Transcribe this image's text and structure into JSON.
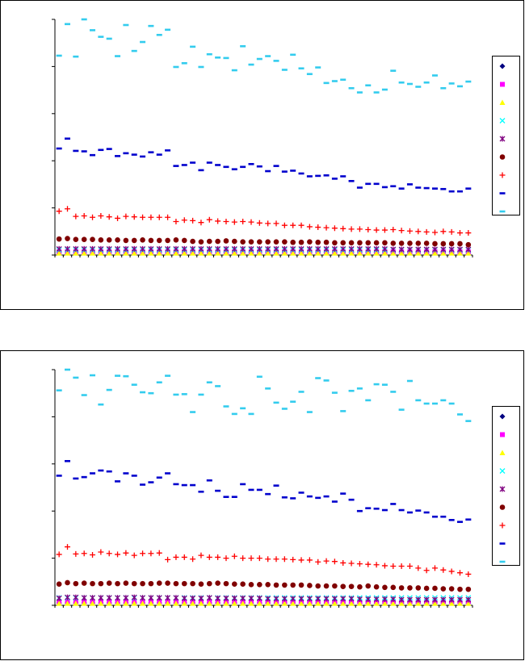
{
  "chart_data": [
    {
      "type": "scatter",
      "title": "",
      "xlabel": "",
      "ylabel": "",
      "n_points": 50,
      "ylim": [
        0,
        5
      ],
      "legend_position": "right",
      "series": [
        {
          "name": "",
          "marker": "diamond",
          "color": "#000080",
          "values": [
            0.05,
            0.05,
            0.05,
            0.05,
            0.05,
            0.05,
            0.05,
            0.05,
            0.05,
            0.05,
            0.05,
            0.05,
            0.05,
            0.05,
            0.05,
            0.05,
            0.05,
            0.05,
            0.05,
            0.05,
            0.05,
            0.05,
            0.05,
            0.05,
            0.05,
            0.05,
            0.05,
            0.05,
            0.05,
            0.05,
            0.05,
            0.05,
            0.05,
            0.05,
            0.05,
            0.05,
            0.05,
            0.05,
            0.05,
            0.05,
            0.05,
            0.05,
            0.05,
            0.05,
            0.05,
            0.05,
            0.05,
            0.05,
            0.05,
            0.05
          ]
        },
        {
          "name": "",
          "marker": "square",
          "color": "#ff00ff",
          "values": [
            0.07,
            0.07,
            0.07,
            0.07,
            0.07,
            0.07,
            0.07,
            0.07,
            0.07,
            0.07,
            0.07,
            0.07,
            0.07,
            0.07,
            0.07,
            0.07,
            0.07,
            0.07,
            0.07,
            0.07,
            0.07,
            0.07,
            0.07,
            0.07,
            0.07,
            0.07,
            0.07,
            0.07,
            0.07,
            0.07,
            0.07,
            0.07,
            0.07,
            0.07,
            0.07,
            0.07,
            0.07,
            0.07,
            0.07,
            0.07,
            0.07,
            0.07,
            0.07,
            0.07,
            0.07,
            0.07,
            0.07,
            0.07,
            0.07,
            0.07
          ]
        },
        {
          "name": "",
          "marker": "triangle",
          "color": "#ffff00",
          "values": [
            0.04,
            0.04,
            0.04,
            0.04,
            0.04,
            0.04,
            0.04,
            0.04,
            0.04,
            0.04,
            0.04,
            0.04,
            0.04,
            0.04,
            0.04,
            0.04,
            0.04,
            0.04,
            0.04,
            0.04,
            0.04,
            0.04,
            0.04,
            0.04,
            0.04,
            0.04,
            0.04,
            0.04,
            0.04,
            0.04,
            0.04,
            0.04,
            0.04,
            0.04,
            0.04,
            0.04,
            0.04,
            0.04,
            0.04,
            0.04,
            0.04,
            0.04,
            0.04,
            0.04,
            0.04,
            0.04,
            0.04,
            0.04,
            0.04,
            0.04
          ]
        },
        {
          "name": "",
          "marker": "x",
          "color": "#00ffff",
          "values": [
            0.11,
            0.11,
            0.11,
            0.11,
            0.11,
            0.11,
            0.11,
            0.11,
            0.11,
            0.11,
            0.11,
            0.11,
            0.11,
            0.11,
            0.11,
            0.11,
            0.11,
            0.11,
            0.11,
            0.11,
            0.11,
            0.11,
            0.11,
            0.11,
            0.11,
            0.11,
            0.11,
            0.11,
            0.11,
            0.11,
            0.11,
            0.11,
            0.11,
            0.11,
            0.11,
            0.11,
            0.11,
            0.11,
            0.11,
            0.11,
            0.11,
            0.11,
            0.11,
            0.11,
            0.11,
            0.11,
            0.11,
            0.11,
            0.11,
            0.11
          ]
        },
        {
          "name": "",
          "marker": "star",
          "color": "#800080",
          "values": [
            0.13,
            0.13,
            0.13,
            0.13,
            0.13,
            0.13,
            0.13,
            0.13,
            0.13,
            0.13,
            0.13,
            0.13,
            0.13,
            0.13,
            0.13,
            0.13,
            0.13,
            0.13,
            0.13,
            0.13,
            0.13,
            0.13,
            0.13,
            0.13,
            0.13,
            0.13,
            0.13,
            0.13,
            0.13,
            0.13,
            0.13,
            0.13,
            0.13,
            0.13,
            0.13,
            0.13,
            0.13,
            0.13,
            0.13,
            0.13,
            0.12,
            0.12,
            0.12,
            0.12,
            0.12,
            0.12,
            0.12,
            0.12,
            0.12,
            0.12
          ]
        },
        {
          "name": "",
          "marker": "circle",
          "color": "#800000",
          "values": [
            0.34,
            0.35,
            0.33,
            0.33,
            0.33,
            0.32,
            0.32,
            0.32,
            0.31,
            0.31,
            0.32,
            0.31,
            0.31,
            0.31,
            0.32,
            0.31,
            0.29,
            0.28,
            0.29,
            0.29,
            0.3,
            0.29,
            0.28,
            0.28,
            0.28,
            0.28,
            0.28,
            0.28,
            0.27,
            0.27,
            0.28,
            0.27,
            0.27,
            0.26,
            0.26,
            0.26,
            0.26,
            0.26,
            0.26,
            0.26,
            0.25,
            0.25,
            0.25,
            0.25,
            0.25,
            0.24,
            0.24,
            0.24,
            0.24,
            0.22
          ]
        },
        {
          "name": "",
          "marker": "plus",
          "color": "#ff0000",
          "values": [
            0.93,
            0.98,
            0.82,
            0.83,
            0.8,
            0.83,
            0.81,
            0.78,
            0.82,
            0.81,
            0.8,
            0.8,
            0.8,
            0.8,
            0.71,
            0.74,
            0.73,
            0.69,
            0.75,
            0.72,
            0.71,
            0.7,
            0.71,
            0.7,
            0.68,
            0.67,
            0.67,
            0.63,
            0.63,
            0.63,
            0.6,
            0.59,
            0.58,
            0.57,
            0.56,
            0.55,
            0.55,
            0.54,
            0.53,
            0.53,
            0.54,
            0.52,
            0.51,
            0.5,
            0.49,
            0.48,
            0.5,
            0.49,
            0.47,
            0.47
          ]
        },
        {
          "name": "",
          "marker": "dash",
          "color": "#0000cd",
          "values": [
            2.26,
            2.47,
            2.21,
            2.2,
            2.12,
            2.23,
            2.25,
            2.1,
            2.16,
            2.13,
            2.09,
            2.18,
            2.13,
            2.22,
            1.89,
            1.91,
            1.96,
            1.8,
            1.96,
            1.91,
            1.87,
            1.82,
            1.87,
            1.93,
            1.88,
            1.78,
            1.89,
            1.77,
            1.79,
            1.73,
            1.67,
            1.68,
            1.69,
            1.62,
            1.67,
            1.57,
            1.43,
            1.51,
            1.51,
            1.44,
            1.46,
            1.41,
            1.5,
            1.43,
            1.42,
            1.41,
            1.4,
            1.35,
            1.35,
            1.41
          ]
        },
        {
          "name": "",
          "marker": "dash",
          "color": "#33ccee",
          "values": [
            4.23,
            4.9,
            4.21,
            5.0,
            4.77,
            4.63,
            4.59,
            4.22,
            4.88,
            4.33,
            4.52,
            4.86,
            4.67,
            4.78,
            3.99,
            4.07,
            4.42,
            3.99,
            4.26,
            4.19,
            4.18,
            3.92,
            4.43,
            4.04,
            4.16,
            4.22,
            4.12,
            3.93,
            4.25,
            3.96,
            3.84,
            3.98,
            3.65,
            3.69,
            3.72,
            3.54,
            3.45,
            3.6,
            3.45,
            3.51,
            3.91,
            3.66,
            3.63,
            3.57,
            3.66,
            3.81,
            3.54,
            3.64,
            3.58,
            3.68
          ]
        }
      ]
    },
    {
      "type": "scatter",
      "title": "",
      "xlabel": "",
      "ylabel": "",
      "n_points": 50,
      "ylim": [
        0,
        5
      ],
      "legend_position": "right",
      "series": [
        {
          "name": "",
          "marker": "diamond",
          "color": "#000080",
          "values": [
            0.05,
            0.05,
            0.05,
            0.05,
            0.05,
            0.05,
            0.05,
            0.05,
            0.05,
            0.05,
            0.05,
            0.05,
            0.05,
            0.05,
            0.05,
            0.05,
            0.05,
            0.05,
            0.05,
            0.05,
            0.05,
            0.05,
            0.05,
            0.05,
            0.05,
            0.05,
            0.05,
            0.05,
            0.05,
            0.05,
            0.05,
            0.05,
            0.05,
            0.05,
            0.05,
            0.05,
            0.05,
            0.05,
            0.05,
            0.05,
            0.05,
            0.05,
            0.05,
            0.05,
            0.05,
            0.05,
            0.05,
            0.05,
            0.05,
            0.05
          ]
        },
        {
          "name": "",
          "marker": "square",
          "color": "#ff00ff",
          "values": [
            0.08,
            0.08,
            0.08,
            0.08,
            0.08,
            0.08,
            0.08,
            0.08,
            0.08,
            0.08,
            0.08,
            0.08,
            0.08,
            0.08,
            0.08,
            0.08,
            0.08,
            0.08,
            0.08,
            0.08,
            0.08,
            0.08,
            0.08,
            0.08,
            0.08,
            0.08,
            0.08,
            0.08,
            0.08,
            0.08,
            0.08,
            0.08,
            0.08,
            0.08,
            0.08,
            0.08,
            0.08,
            0.08,
            0.08,
            0.08,
            0.08,
            0.08,
            0.08,
            0.08,
            0.08,
            0.08,
            0.08,
            0.08,
            0.08,
            0.08
          ]
        },
        {
          "name": "",
          "marker": "triangle",
          "color": "#ffff00",
          "values": [
            0.04,
            0.04,
            0.04,
            0.04,
            0.04,
            0.04,
            0.04,
            0.04,
            0.04,
            0.04,
            0.04,
            0.04,
            0.04,
            0.04,
            0.04,
            0.04,
            0.04,
            0.04,
            0.04,
            0.04,
            0.04,
            0.04,
            0.04,
            0.04,
            0.04,
            0.04,
            0.04,
            0.04,
            0.04,
            0.04,
            0.04,
            0.04,
            0.04,
            0.04,
            0.04,
            0.04,
            0.04,
            0.04,
            0.04,
            0.04,
            0.04,
            0.04,
            0.04,
            0.04,
            0.04,
            0.04,
            0.04,
            0.04,
            0.04,
            0.04
          ]
        },
        {
          "name": "",
          "marker": "x",
          "color": "#00ffff",
          "values": [
            0.16,
            0.16,
            0.16,
            0.16,
            0.16,
            0.16,
            0.16,
            0.16,
            0.16,
            0.16,
            0.16,
            0.16,
            0.16,
            0.16,
            0.16,
            0.16,
            0.16,
            0.16,
            0.16,
            0.16,
            0.16,
            0.16,
            0.16,
            0.16,
            0.16,
            0.16,
            0.16,
            0.16,
            0.16,
            0.16,
            0.16,
            0.16,
            0.16,
            0.16,
            0.16,
            0.16,
            0.16,
            0.16,
            0.16,
            0.16,
            0.16,
            0.16,
            0.16,
            0.16,
            0.16,
            0.16,
            0.16,
            0.16,
            0.16,
            0.16
          ]
        },
        {
          "name": "",
          "marker": "star",
          "color": "#800080",
          "values": [
            0.15,
            0.17,
            0.17,
            0.16,
            0.16,
            0.16,
            0.16,
            0.16,
            0.16,
            0.17,
            0.16,
            0.16,
            0.16,
            0.16,
            0.16,
            0.15,
            0.15,
            0.15,
            0.16,
            0.15,
            0.15,
            0.15,
            0.15,
            0.15,
            0.15,
            0.14,
            0.14,
            0.14,
            0.14,
            0.14,
            0.14,
            0.14,
            0.14,
            0.14,
            0.14,
            0.14,
            0.13,
            0.13,
            0.13,
            0.13,
            0.13,
            0.12,
            0.12,
            0.12,
            0.12,
            0.12,
            0.12,
            0.12,
            0.12,
            0.12
          ]
        },
        {
          "name": "",
          "marker": "circle",
          "color": "#800000",
          "values": [
            0.45,
            0.48,
            0.46,
            0.47,
            0.46,
            0.46,
            0.47,
            0.46,
            0.47,
            0.46,
            0.46,
            0.46,
            0.47,
            0.47,
            0.46,
            0.46,
            0.46,
            0.45,
            0.46,
            0.47,
            0.46,
            0.45,
            0.45,
            0.44,
            0.44,
            0.44,
            0.43,
            0.43,
            0.43,
            0.43,
            0.42,
            0.41,
            0.41,
            0.41,
            0.4,
            0.4,
            0.39,
            0.41,
            0.39,
            0.38,
            0.38,
            0.37,
            0.37,
            0.37,
            0.36,
            0.36,
            0.35,
            0.35,
            0.34,
            0.34
          ]
        },
        {
          "name": "",
          "marker": "plus",
          "color": "#ff0000",
          "values": [
            1.08,
            1.24,
            1.09,
            1.1,
            1.07,
            1.13,
            1.1,
            1.08,
            1.11,
            1.06,
            1.1,
            1.1,
            1.11,
            0.97,
            1.02,
            1.02,
            0.98,
            1.06,
            1.02,
            1.02,
            1.0,
            1.04,
            1.0,
            1.0,
            1.0,
            0.98,
            0.98,
            0.98,
            0.97,
            0.96,
            0.96,
            0.92,
            0.94,
            0.93,
            0.9,
            0.89,
            0.88,
            0.87,
            0.86,
            0.84,
            0.83,
            0.83,
            0.83,
            0.79,
            0.74,
            0.79,
            0.75,
            0.72,
            0.69,
            0.66
          ]
        },
        {
          "name": "",
          "marker": "dash",
          "color": "#0000cd",
          "values": [
            2.75,
            3.06,
            2.69,
            2.72,
            2.8,
            2.86,
            2.84,
            2.63,
            2.8,
            2.75,
            2.56,
            2.61,
            2.71,
            2.8,
            2.57,
            2.55,
            2.55,
            2.41,
            2.65,
            2.43,
            2.3,
            2.3,
            2.57,
            2.45,
            2.45,
            2.36,
            2.54,
            2.29,
            2.27,
            2.39,
            2.31,
            2.28,
            2.31,
            2.2,
            2.37,
            2.24,
            2.0,
            2.06,
            2.05,
            2.02,
            2.15,
            2.02,
            1.97,
            2.01,
            1.97,
            1.88,
            1.88,
            1.81,
            1.77,
            1.82
          ]
        },
        {
          "name": "",
          "marker": "dash",
          "color": "#33ccee",
          "values": [
            4.56,
            5.0,
            4.83,
            4.46,
            4.88,
            4.26,
            4.57,
            4.87,
            4.86,
            4.68,
            4.52,
            4.5,
            4.73,
            4.87,
            4.47,
            4.48,
            4.1,
            4.47,
            4.73,
            4.65,
            4.22,
            4.06,
            4.18,
            4.06,
            4.85,
            4.6,
            4.3,
            4.17,
            4.32,
            4.53,
            4.1,
            4.82,
            4.77,
            4.51,
            4.12,
            4.55,
            4.6,
            4.35,
            4.69,
            4.68,
            4.53,
            4.15,
            4.76,
            4.35,
            4.28,
            4.28,
            4.35,
            4.28,
            4.05,
            3.91
          ]
        }
      ]
    }
  ]
}
